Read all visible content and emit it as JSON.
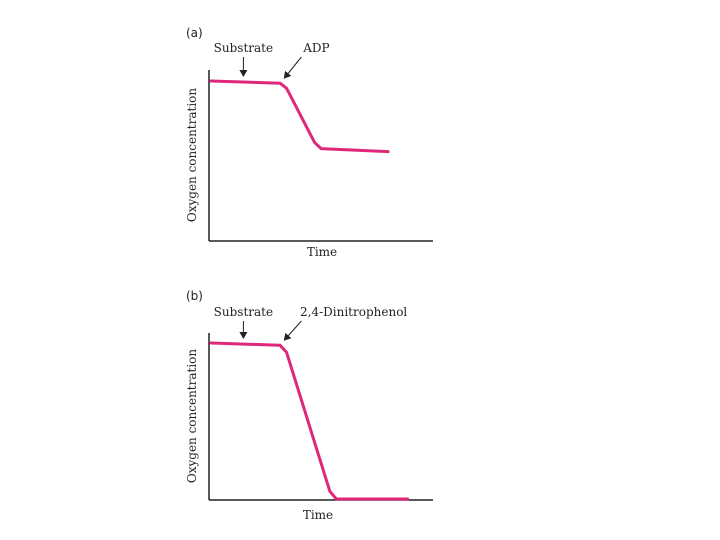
{
  "chart_data": [
    {
      "type": "line",
      "panel": "(a)",
      "xlabel": "Time",
      "ylabel": "Oxygen concentration",
      "xlim": [
        0,
        10
      ],
      "ylim": [
        0,
        10
      ],
      "annotations": [
        {
          "text": "Substrate",
          "x": 1.5
        },
        {
          "text": "ADP",
          "x": 3.4
        }
      ],
      "series": [
        {
          "name": "oxygen",
          "color": "#e0287a",
          "x": [
            0.0,
            3.2,
            3.5,
            4.8,
            5.1,
            8.2
          ],
          "y": [
            10.0,
            9.85,
            9.5,
            5.8,
            5.4,
            5.2
          ]
        }
      ]
    },
    {
      "type": "line",
      "panel": "(b)",
      "xlabel": "Time",
      "ylabel": "Oxygen concentration",
      "xlim": [
        0,
        10
      ],
      "ylim": [
        0,
        10
      ],
      "annotations": [
        {
          "text": "Substrate",
          "x": 1.5
        },
        {
          "text": "2,4-Dinitrophenol",
          "x": 3.4
        }
      ],
      "series": [
        {
          "name": "oxygen",
          "color": "#e0287a",
          "x": [
            0.0,
            3.2,
            3.5,
            5.5,
            5.8,
            9.1
          ],
          "y": [
            10.0,
            9.85,
            9.4,
            0.5,
            0.0,
            0.0
          ]
        }
      ]
    }
  ]
}
